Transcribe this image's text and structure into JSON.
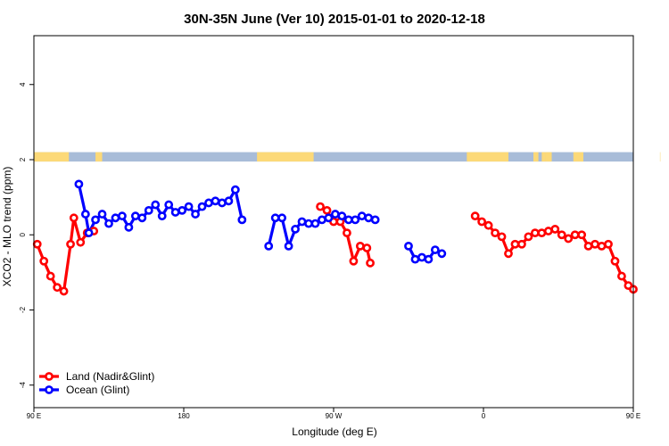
{
  "chart_data": {
    "type": "line",
    "title": "30N-35N June (Ver 10)   2015-01-01 to 2020-12-18",
    "xlabel": "Longitude (deg E)",
    "ylabel": "XCO2 - MLO trend (ppm)",
    "xlim": [
      90,
      450
    ],
    "ylim": [
      -4.6,
      5.3
    ],
    "x_ticks": [
      {
        "value": 90,
        "label": "90 E"
      },
      {
        "value": 180,
        "label": "180"
      },
      {
        "value": 270,
        "label": "90 W"
      },
      {
        "value": 360,
        "label": "0"
      },
      {
        "value": 450,
        "label": "90 E"
      },
      {
        "value": 540,
        "label": "180"
      }
    ],
    "y_ticks": [
      {
        "value": -4,
        "label": "-4"
      },
      {
        "value": -2,
        "label": "-2"
      },
      {
        "value": 0,
        "label": "0"
      },
      {
        "value": 2,
        "label": "2"
      },
      {
        "value": 4,
        "label": "4"
      }
    ],
    "band": {
      "y_range": [
        1.95,
        2.2
      ],
      "ocean_color": "#a8bcd8",
      "land_color": "#fcd978",
      "land_ranges": [
        [
          90,
          111
        ],
        [
          127,
          131
        ],
        [
          224,
          258
        ],
        [
          350,
          375
        ],
        [
          390,
          393
        ],
        [
          395,
          397
        ],
        [
          397,
          401
        ],
        [
          414,
          420
        ],
        [
          466,
          471
        ],
        [
          475,
          478
        ]
      ]
    },
    "series": [
      {
        "name": "Land (Nadir&Glint)",
        "color": "#ff0000",
        "segments": [
          [
            [
              92,
              -0.25
            ],
            [
              96,
              -0.7
            ],
            [
              100,
              -1.1
            ],
            [
              104,
              -1.4
            ],
            [
              108,
              -1.5
            ],
            [
              112,
              -0.25
            ],
            [
              114,
              0.45
            ],
            [
              118,
              -0.2
            ],
            [
              122,
              0.05
            ],
            [
              126,
              0.1
            ]
          ],
          [
            [
              262,
              0.75
            ],
            [
              266,
              0.65
            ],
            [
              270,
              0.35
            ],
            [
              274,
              0.35
            ],
            [
              278,
              0.05
            ],
            [
              282,
              -0.7
            ],
            [
              286,
              -0.3
            ],
            [
              290,
              -0.35
            ],
            [
              292,
              -0.75
            ]
          ],
          [
            [
              355,
              0.5
            ],
            [
              359,
              0.35
            ],
            [
              363,
              0.25
            ],
            [
              367,
              0.05
            ],
            [
              371,
              -0.05
            ],
            [
              375,
              -0.5
            ],
            [
              379,
              -0.25
            ],
            [
              383,
              -0.25
            ],
            [
              387,
              -0.05
            ],
            [
              391,
              0.05
            ],
            [
              395,
              0.05
            ],
            [
              399,
              0.1
            ],
            [
              403,
              0.15
            ],
            [
              407,
              0.0
            ],
            [
              411,
              -0.1
            ],
            [
              415,
              0.0
            ],
            [
              419,
              0.0
            ],
            [
              423,
              -0.3
            ],
            [
              427,
              -0.25
            ],
            [
              431,
              -0.3
            ],
            [
              435,
              -0.25
            ],
            [
              439,
              -0.7
            ],
            [
              443,
              -1.1
            ],
            [
              447,
              -1.35
            ],
            [
              450,
              -1.45
            ]
          ]
        ]
      },
      {
        "name": "Ocean (Glint)",
        "color": "#0000ff",
        "segments": [
          [
            [
              117,
              1.35
            ],
            [
              121,
              0.55
            ],
            [
              123,
              0.05
            ],
            [
              127,
              0.4
            ],
            [
              131,
              0.55
            ],
            [
              135,
              0.3
            ],
            [
              139,
              0.45
            ],
            [
              143,
              0.5
            ],
            [
              147,
              0.2
            ],
            [
              151,
              0.5
            ],
            [
              155,
              0.45
            ],
            [
              159,
              0.65
            ],
            [
              163,
              0.8
            ],
            [
              167,
              0.5
            ],
            [
              171,
              0.8
            ],
            [
              175,
              0.6
            ],
            [
              179,
              0.65
            ],
            [
              183,
              0.75
            ],
            [
              187,
              0.55
            ],
            [
              191,
              0.75
            ],
            [
              195,
              0.85
            ],
            [
              199,
              0.9
            ],
            [
              203,
              0.85
            ],
            [
              207,
              0.9
            ],
            [
              211,
              1.2
            ],
            [
              215,
              0.4
            ]
          ],
          [
            [
              231,
              -0.3
            ],
            [
              235,
              0.45
            ],
            [
              239,
              0.45
            ],
            [
              243,
              -0.3
            ],
            [
              247,
              0.15
            ],
            [
              251,
              0.35
            ],
            [
              255,
              0.3
            ],
            [
              259,
              0.3
            ],
            [
              263,
              0.4
            ],
            [
              267,
              0.45
            ],
            [
              271,
              0.55
            ],
            [
              275,
              0.5
            ],
            [
              279,
              0.4
            ],
            [
              283,
              0.4
            ],
            [
              287,
              0.5
            ],
            [
              291,
              0.45
            ],
            [
              295,
              0.4
            ]
          ],
          [
            [
              315,
              -0.3
            ],
            [
              319,
              -0.65
            ],
            [
              323,
              -0.6
            ],
            [
              327,
              -0.65
            ],
            [
              331,
              -0.4
            ],
            [
              335,
              -0.5
            ]
          ]
        ]
      }
    ],
    "legend": {
      "position": "bottom-left",
      "entries": [
        {
          "label": "Land (Nadir&Glint)",
          "color": "#ff0000"
        },
        {
          "label": "Ocean (Glint)",
          "color": "#0000ff"
        }
      ]
    }
  }
}
